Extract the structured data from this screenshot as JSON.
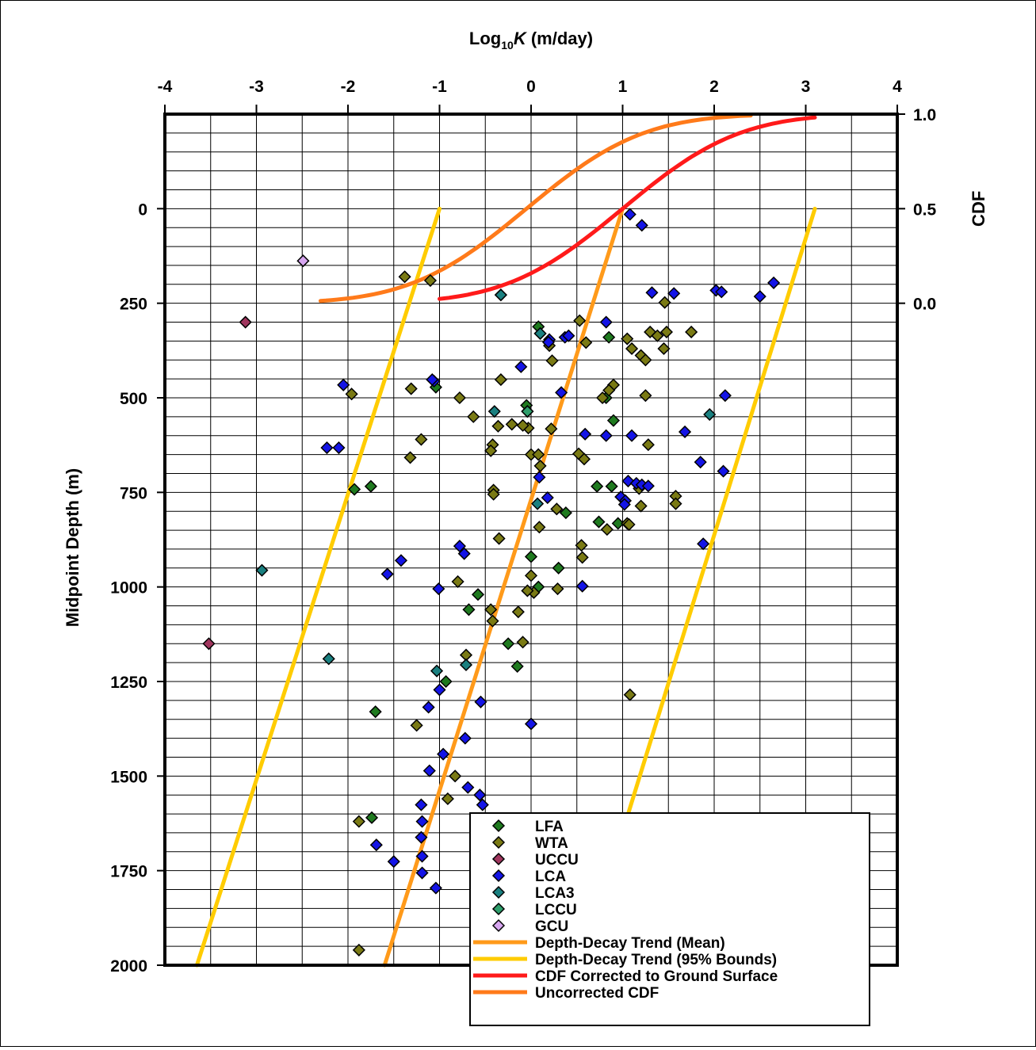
{
  "chart_data": {
    "type": "scatter",
    "title": "",
    "xlabel": "Log10 K (m/day)",
    "xlabel_parts": {
      "base": "Log",
      "sub": "10",
      "var": "K",
      "unit": " (m/day)"
    },
    "ylabel": "Midpoint Depth (m)",
    "y2label": "CDF",
    "xlim": [
      -4,
      4
    ],
    "ylim": [
      -250,
      2000
    ],
    "y_inverted": true,
    "x_ticks": [
      "-4",
      "-3",
      "-2",
      "-1",
      "0",
      "1",
      "2",
      "3",
      "4"
    ],
    "y_ticks": [
      "0",
      "250",
      "500",
      "750",
      "1000",
      "1250",
      "1500",
      "1750",
      "2000"
    ],
    "cdf_ticks": [
      "1.0",
      "0.5",
      "0.0"
    ],
    "cdf_range": [
      0,
      1
    ],
    "grid": true,
    "legend_position": "bottom-right",
    "colors": {
      "LFA": "#1f7a1f",
      "WTA": "#7a7a14",
      "UCCU": "#a0365e",
      "LCA": "#1414e6",
      "LCA3": "#1a8080",
      "LCCU": "#2e9e6b",
      "GCU": "#d7a6f0",
      "mean": "#ff9a1a",
      "bounds": "#ffcc00",
      "cdf_corrected": "#ff1a1a",
      "cdf_uncorrected": "#ff7a1a"
    },
    "series": [
      {
        "name": "LFA",
        "type": "scatter",
        "points": [
          [
            0.08,
            312
          ],
          [
            0.1,
            330
          ],
          [
            0.85,
            340
          ],
          [
            0.82,
            500
          ],
          [
            0.9,
            560
          ],
          [
            -0.05,
            520
          ],
          [
            0.0,
            920
          ],
          [
            0.3,
            950
          ],
          [
            0.08,
            1000
          ],
          [
            -0.58,
            1020
          ],
          [
            -0.68,
            1060
          ],
          [
            -0.25,
            1150
          ],
          [
            -0.15,
            1210
          ],
          [
            -0.93,
            1250
          ],
          [
            -1.7,
            1330
          ],
          [
            -1.74,
            1610
          ],
          [
            -1.93,
            742
          ],
          [
            -1.75,
            734
          ],
          [
            0.72,
            734
          ],
          [
            0.88,
            734
          ],
          [
            0.38,
            804
          ],
          [
            0.74,
            828
          ],
          [
            0.95,
            832
          ],
          [
            -1.04,
            472
          ],
          [
            -0.33,
            228
          ]
        ]
      },
      {
        "name": "WTA",
        "type": "scatter",
        "points": [
          [
            -1.38,
            180
          ],
          [
            -1.1,
            190
          ],
          [
            0.53,
            296
          ],
          [
            1.05,
            344
          ],
          [
            1.3,
            326
          ],
          [
            1.48,
            326
          ],
          [
            1.75,
            326
          ],
          [
            1.38,
            336
          ],
          [
            1.1,
            370
          ],
          [
            1.2,
            388
          ],
          [
            1.25,
            400
          ],
          [
            1.45,
            370
          ],
          [
            1.46,
            248
          ],
          [
            0.9,
            466
          ],
          [
            0.85,
            480
          ],
          [
            0.78,
            500
          ],
          [
            1.25,
            494
          ],
          [
            0.2,
            362
          ],
          [
            0.23,
            402
          ],
          [
            0.6,
            354
          ],
          [
            -0.33,
            452
          ],
          [
            -0.78,
            500
          ],
          [
            -0.63,
            550
          ],
          [
            -1.31,
            476
          ],
          [
            -1.96,
            490
          ],
          [
            -0.03,
            580
          ],
          [
            -0.09,
            573
          ],
          [
            -0.21,
            570
          ],
          [
            0.22,
            582
          ],
          [
            -0.36,
            575
          ],
          [
            -0.42,
            624
          ],
          [
            -0.44,
            640
          ],
          [
            -1.2,
            610
          ],
          [
            -1.32,
            658
          ],
          [
            0.0,
            650
          ],
          [
            0.08,
            650
          ],
          [
            0.1,
            680
          ],
          [
            0.52,
            648
          ],
          [
            0.58,
            662
          ],
          [
            1.28,
            624
          ],
          [
            1.18,
            740
          ],
          [
            1.58,
            760
          ],
          [
            1.58,
            780
          ],
          [
            1.2,
            786
          ],
          [
            1.05,
            832
          ],
          [
            0.83,
            848
          ],
          [
            1.07,
            835
          ],
          [
            0.28,
            794
          ],
          [
            0.09,
            842
          ],
          [
            -0.41,
            744
          ],
          [
            -0.41,
            755
          ],
          [
            -0.35,
            872
          ],
          [
            0.55,
            890
          ],
          [
            0.56,
            922
          ],
          [
            -0.8,
            986
          ],
          [
            0.0,
            970
          ],
          [
            0.03,
            1015
          ],
          [
            -0.04,
            1010
          ],
          [
            0.29,
            1005
          ],
          [
            -0.44,
            1060
          ],
          [
            -0.42,
            1090
          ],
          [
            -0.14,
            1066
          ],
          [
            -0.09,
            1146
          ],
          [
            -0.71,
            1180
          ],
          [
            1.08,
            1285
          ],
          [
            -1.25,
            1366
          ],
          [
            -0.83,
            1500
          ],
          [
            -0.91,
            1560
          ],
          [
            -1.88,
            1620
          ],
          [
            -1.88,
            1960
          ]
        ]
      },
      {
        "name": "UCCU",
        "type": "scatter",
        "points": [
          [
            -3.12,
            300
          ],
          [
            -3.52,
            1150
          ]
        ]
      },
      {
        "name": "LCA",
        "type": "scatter",
        "points": [
          [
            1.08,
            15
          ],
          [
            1.21,
            44
          ],
          [
            1.32,
            222
          ],
          [
            1.56,
            224
          ],
          [
            2.02,
            216
          ],
          [
            2.08,
            220
          ],
          [
            2.5,
            232
          ],
          [
            2.65,
            196
          ],
          [
            0.82,
            300
          ],
          [
            0.37,
            340
          ],
          [
            0.41,
            336
          ],
          [
            0.2,
            346
          ],
          [
            0.19,
            353
          ],
          [
            -1.06,
            456
          ],
          [
            -1.08,
            452
          ],
          [
            -2.05,
            466
          ],
          [
            -0.11,
            418
          ],
          [
            0.33,
            486
          ],
          [
            2.12,
            494
          ],
          [
            0.59,
            596
          ],
          [
            0.82,
            600
          ],
          [
            1.1,
            600
          ],
          [
            1.68,
            590
          ],
          [
            -2.1,
            632
          ],
          [
            -2.23,
            632
          ],
          [
            0.09,
            710
          ],
          [
            0.18,
            764
          ],
          [
            1.06,
            720
          ],
          [
            1.15,
            726
          ],
          [
            1.21,
            730
          ],
          [
            1.28,
            733
          ],
          [
            0.98,
            762
          ],
          [
            1.03,
            772
          ],
          [
            1.02,
            782
          ],
          [
            1.85,
            670
          ],
          [
            2.1,
            694
          ],
          [
            1.88,
            886
          ],
          [
            -0.78,
            892
          ],
          [
            -0.73,
            912
          ],
          [
            -1.42,
            930
          ],
          [
            -1.57,
            966
          ],
          [
            -1.01,
            1005
          ],
          [
            0.56,
            998
          ],
          [
            -1.0,
            1272
          ],
          [
            -1.12,
            1318
          ],
          [
            -0.55,
            1304
          ],
          [
            -0.72,
            1400
          ],
          [
            0.0,
            1362
          ],
          [
            -0.96,
            1442
          ],
          [
            -1.11,
            1486
          ],
          [
            -0.69,
            1530
          ],
          [
            -0.56,
            1550
          ],
          [
            -0.53,
            1576
          ],
          [
            -1.2,
            1576
          ],
          [
            -1.19,
            1620
          ],
          [
            -1.2,
            1662
          ],
          [
            -1.69,
            1682
          ],
          [
            -1.5,
            1726
          ],
          [
            -1.19,
            1712
          ],
          [
            -1.19,
            1756
          ],
          [
            -1.04,
            1796
          ]
        ]
      },
      {
        "name": "LCA3",
        "type": "scatter",
        "points": [
          [
            -0.33,
            228
          ],
          [
            0.1,
            330
          ],
          [
            -0.4,
            536
          ],
          [
            -0.04,
            536
          ],
          [
            1.95,
            544
          ],
          [
            0.07,
            780
          ],
          [
            -2.94,
            956
          ],
          [
            -2.21,
            1190
          ],
          [
            -0.71,
            1206
          ],
          [
            -1.03,
            1222
          ]
        ]
      },
      {
        "name": "LCCU",
        "type": "scatter",
        "points": [
          [
            -0.04,
            536
          ]
        ]
      },
      {
        "name": "GCU",
        "type": "scatter",
        "points": [
          [
            -2.49,
            138
          ]
        ]
      },
      {
        "name": "Depth-Decay Trend (Mean)",
        "type": "line",
        "points": [
          [
            1.0,
            0
          ],
          [
            -1.6,
            2000
          ]
        ]
      },
      {
        "name": "Depth-Decay Trend (95% Bounds)",
        "type": "line",
        "points": [
          [
            -1.0,
            0
          ],
          [
            -3.65,
            2000
          ]
        ]
      },
      {
        "name": "Depth-Decay Trend (95% Bounds)",
        "type": "line",
        "points": [
          [
            3.1,
            0
          ],
          [
            0.55,
            2000
          ]
        ],
        "show_in_legend": false
      },
      {
        "name": "CDF Corrected to Ground Surface",
        "type": "cdf",
        "mean": 1.0,
        "sd": 1.0,
        "x_range": [
          -1.0,
          3.1
        ]
      },
      {
        "name": "Uncorrected CDF",
        "type": "cdf",
        "mean": -0.05,
        "sd": 1.0,
        "x_range": [
          -2.3,
          2.4
        ]
      }
    ]
  }
}
